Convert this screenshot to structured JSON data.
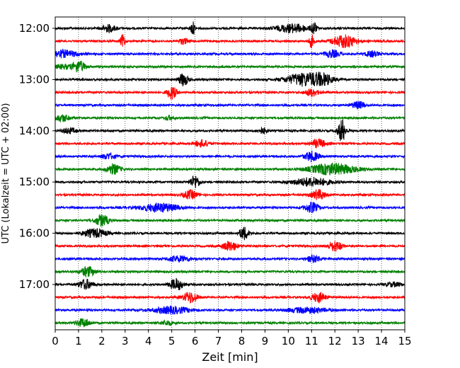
{
  "chart_data": {
    "type": "line",
    "title": "",
    "xlabel": "Zeit  [min]",
    "ylabel": "UTC (Lokalzeit = UTC + 02:00)",
    "xlim": [
      0,
      15
    ],
    "xticks": [
      0,
      1,
      2,
      3,
      4,
      5,
      6,
      7,
      8,
      9,
      10,
      11,
      12,
      13,
      14,
      15
    ],
    "grid": "vertical dotted lines at each minute",
    "hour_labels": [
      {
        "label": "12:00",
        "row": 0
      },
      {
        "label": "13:00",
        "row": 4
      },
      {
        "label": "14:00",
        "row": 8
      },
      {
        "label": "15:00",
        "row": 12
      },
      {
        "label": "16:00",
        "row": 16
      },
      {
        "label": "17:00",
        "row": 20
      }
    ],
    "colors": [
      "#000000",
      "#ff0000",
      "#0000ff",
      "#008000"
    ],
    "series": [
      {
        "start": "12:00",
        "color": "#000000",
        "events": [
          [
            2.3,
            0.5,
            0.3
          ],
          [
            5.9,
            0.9,
            0.1
          ],
          [
            10.2,
            0.6,
            0.7
          ],
          [
            11.1,
            0.9,
            0.1
          ]
        ]
      },
      {
        "start": "12:15",
        "color": "#ff0000",
        "events": [
          [
            2.9,
            0.9,
            0.1
          ],
          [
            5.5,
            0.4,
            0.2
          ],
          [
            11.0,
            0.9,
            0.1
          ],
          [
            12.4,
            0.9,
            0.5
          ]
        ]
      },
      {
        "start": "12:30",
        "color": "#0000ff",
        "events": [
          [
            0.3,
            0.5,
            0.7
          ],
          [
            11.9,
            0.5,
            0.3
          ],
          [
            13.6,
            0.4,
            0.3
          ]
        ]
      },
      {
        "start": "12:45",
        "color": "#008000",
        "events": [
          [
            1.0,
            0.8,
            0.3
          ],
          [
            0.3,
            0.3,
            0.3
          ]
        ]
      },
      {
        "start": "13:00",
        "color": "#000000",
        "events": [
          [
            5.5,
            0.9,
            0.2
          ],
          [
            10.7,
            0.9,
            0.8
          ],
          [
            11.5,
            0.6,
            0.4
          ]
        ]
      },
      {
        "start": "13:15",
        "color": "#ff0000",
        "events": [
          [
            5.0,
            0.9,
            0.2
          ],
          [
            11.0,
            0.5,
            0.3
          ]
        ]
      },
      {
        "start": "13:30",
        "color": "#0000ff",
        "events": [
          [
            13.0,
            0.5,
            0.3
          ]
        ]
      },
      {
        "start": "13:45",
        "color": "#008000",
        "events": [
          [
            0.3,
            0.5,
            0.3
          ],
          [
            4.9,
            0.3,
            0.2
          ]
        ]
      },
      {
        "start": "14:00",
        "color": "#000000",
        "events": [
          [
            0.6,
            0.4,
            0.3
          ],
          [
            8.9,
            0.4,
            0.2
          ],
          [
            12.3,
            0.9,
            0.2
          ],
          [
            12.3,
            0.9,
            0.1
          ]
        ]
      },
      {
        "start": "14:15",
        "color": "#ff0000",
        "events": [
          [
            6.3,
            0.5,
            0.3
          ],
          [
            11.3,
            0.6,
            0.3
          ]
        ]
      },
      {
        "start": "14:30",
        "color": "#0000ff",
        "events": [
          [
            2.3,
            0.4,
            0.3
          ],
          [
            11.0,
            0.7,
            0.3
          ]
        ]
      },
      {
        "start": "14:45",
        "color": "#008000",
        "events": [
          [
            2.5,
            0.7,
            0.3
          ],
          [
            11.9,
            0.8,
            1.0
          ]
        ]
      },
      {
        "start": "15:00",
        "color": "#000000",
        "events": [
          [
            6.0,
            0.9,
            0.2
          ],
          [
            11.0,
            0.6,
            0.8
          ]
        ]
      },
      {
        "start": "15:15",
        "color": "#ff0000",
        "events": [
          [
            5.8,
            0.6,
            0.3
          ],
          [
            11.3,
            0.7,
            0.3
          ]
        ]
      },
      {
        "start": "15:30",
        "color": "#0000ff",
        "events": [
          [
            4.5,
            0.6,
            0.8
          ],
          [
            11.0,
            0.7,
            0.3
          ]
        ]
      },
      {
        "start": "15:45",
        "color": "#008000",
        "events": [
          [
            2.0,
            0.8,
            0.3
          ]
        ]
      },
      {
        "start": "16:00",
        "color": "#000000",
        "events": [
          [
            1.7,
            0.6,
            0.5
          ],
          [
            8.1,
            0.9,
            0.2
          ]
        ]
      },
      {
        "start": "16:15",
        "color": "#ff0000",
        "events": [
          [
            7.5,
            0.7,
            0.3
          ],
          [
            12.0,
            0.7,
            0.3
          ]
        ]
      },
      {
        "start": "16:30",
        "color": "#0000ff",
        "events": [
          [
            5.3,
            0.4,
            0.5
          ],
          [
            11.1,
            0.5,
            0.3
          ]
        ]
      },
      {
        "start": "16:45",
        "color": "#008000",
        "events": [
          [
            1.4,
            0.7,
            0.3
          ]
        ]
      },
      {
        "start": "17:00",
        "color": "#000000",
        "events": [
          [
            1.3,
            0.7,
            0.3
          ],
          [
            5.2,
            0.8,
            0.3
          ],
          [
            14.5,
            0.3,
            0.3
          ]
        ]
      },
      {
        "start": "17:15",
        "color": "#ff0000",
        "events": [
          [
            5.8,
            0.8,
            0.3
          ],
          [
            11.3,
            0.7,
            0.3
          ]
        ]
      },
      {
        "start": "17:30",
        "color": "#0000ff",
        "events": [
          [
            5.0,
            0.5,
            0.8
          ],
          [
            10.8,
            0.4,
            0.8
          ]
        ]
      },
      {
        "start": "17:45",
        "color": "#008000",
        "events": [
          [
            1.2,
            0.6,
            0.3
          ],
          [
            4.8,
            0.3,
            0.3
          ]
        ]
      }
    ]
  }
}
